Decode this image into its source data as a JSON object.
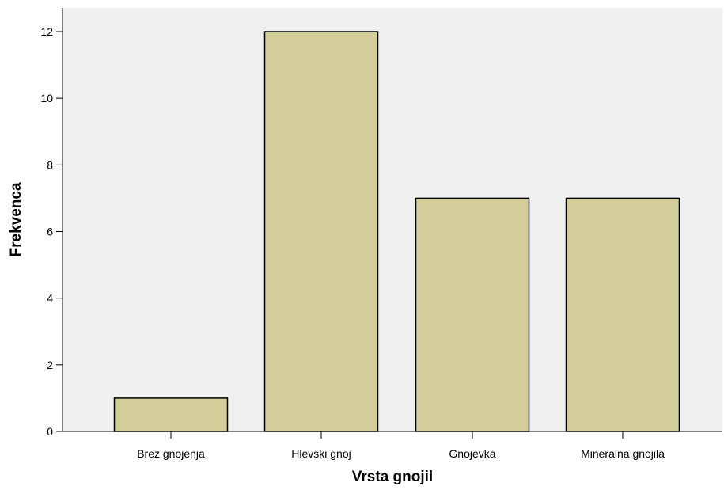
{
  "chart_data": {
    "type": "bar",
    "categories": [
      "Brez gnojenja",
      "Hlevski gnoj",
      "Gnojevka",
      "Mineralna gnojila"
    ],
    "values": [
      1,
      12,
      7,
      7
    ],
    "xlabel": "Vrsta gnojil",
    "ylabel": "Frekvenca",
    "ylim": [
      0,
      13
    ],
    "yticks": [
      0,
      2,
      4,
      6,
      8,
      10,
      12
    ],
    "grid": false,
    "colors": {
      "plot_background": "#f0f0f0",
      "bar_fill": "#d3ce99",
      "bar_stroke": "#000000",
      "axis": "#000000"
    }
  }
}
